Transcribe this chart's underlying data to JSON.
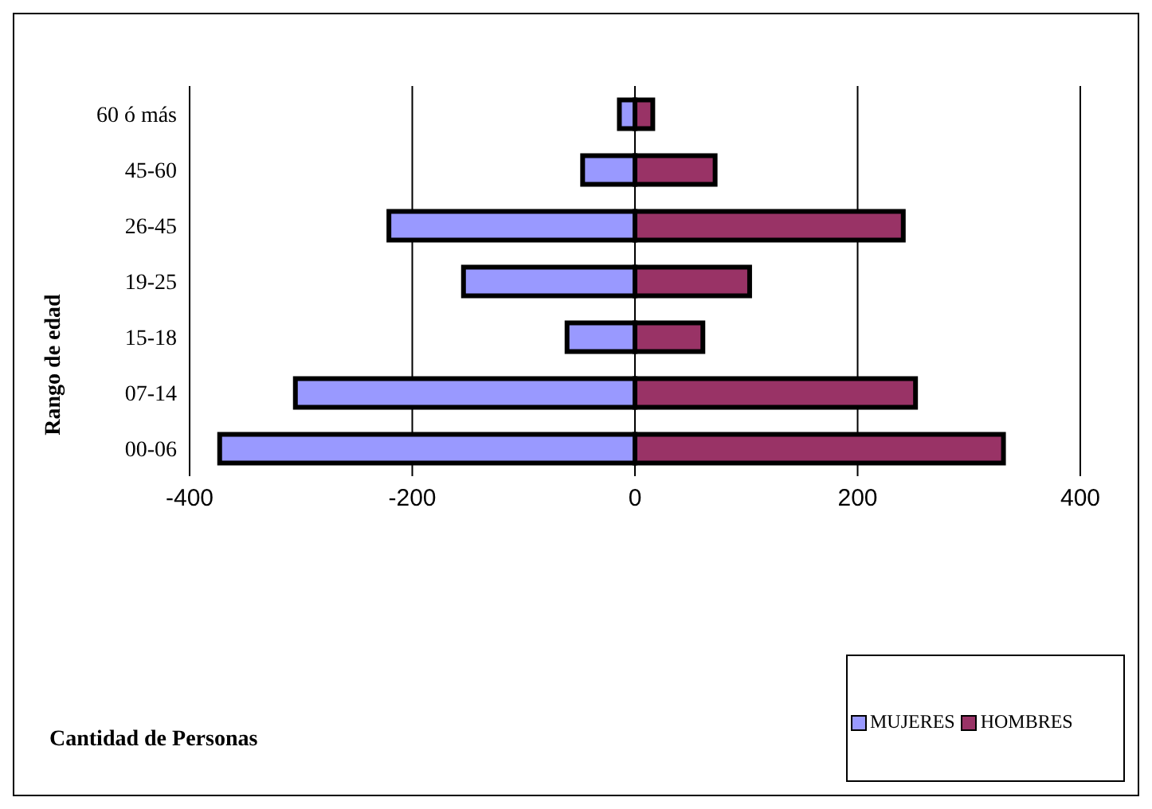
{
  "chart_data": {
    "type": "bar",
    "orientation": "horizontal",
    "stacked": true,
    "annotations": [
      "Cantidad de Personas"
    ],
    "ylabel": "Rango de edad",
    "categories": [
      "60 ó más",
      "45-60",
      "26-45",
      "19-25",
      "15-18",
      "07-14",
      "00-06"
    ],
    "series": [
      {
        "name": "MUJERES",
        "color": "#9999ff",
        "values": [
          -14,
          -47,
          -221,
          -154,
          -61,
          -305,
          -373
        ]
      },
      {
        "name": "HOMBRES",
        "color": "#993366",
        "values": [
          16,
          72,
          241,
          103,
          61,
          252,
          331
        ]
      }
    ],
    "xlim": [
      -400,
      400
    ],
    "xticks": [
      -400,
      -200,
      0,
      200,
      400
    ],
    "grid": "x",
    "legend": "bottom right"
  }
}
